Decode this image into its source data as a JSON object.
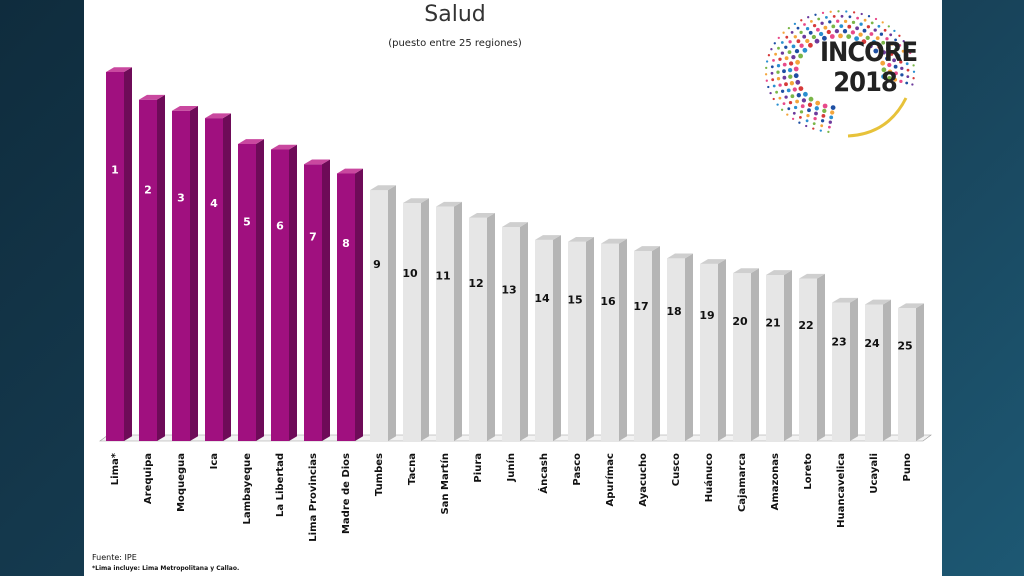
{
  "chart_data": {
    "type": "bar",
    "title": "Salud",
    "subtitle": "(puesto entre 25 regiones)",
    "categories": [
      "Lima*",
      "Arequipa",
      "Moquegua",
      "Ica",
      "Lambayeque",
      "La Libertad",
      "Lima Provincias",
      "Madre de Dios",
      "Tumbes",
      "Tacna",
      "San Martín",
      "Piura",
      "Junín",
      "Áncash",
      "Pasco",
      "Apurímac",
      "Ayacucho",
      "Cusco",
      "Huánuco",
      "Cajamarca",
      "Amazonas",
      "Loreto",
      "Huancavelica",
      "Ucayali",
      "Puno"
    ],
    "values": [
      1,
      2,
      3,
      4,
      5,
      6,
      7,
      8,
      9,
      10,
      11,
      12,
      13,
      14,
      15,
      16,
      17,
      18,
      19,
      20,
      21,
      22,
      23,
      24,
      25
    ],
    "heights": [
      100,
      92.5,
      89.5,
      87.5,
      80.5,
      79,
      75,
      72.5,
      68,
      64.5,
      63.5,
      60.5,
      58,
      54.5,
      54,
      53.5,
      51.5,
      49.5,
      48,
      45.5,
      45,
      44,
      37.5,
      37,
      36
    ],
    "highlight_count": 8,
    "colors": {
      "highlight": "#a0107f",
      "other": "#e6e6e6"
    },
    "grid": false,
    "legend": "none"
  },
  "logo": {
    "line1": "INCORE",
    "line2": "2018"
  },
  "footnote": {
    "source": "Fuente: IPE",
    "note": "*Lima incluye: Lima Metropolitana y Callao."
  }
}
